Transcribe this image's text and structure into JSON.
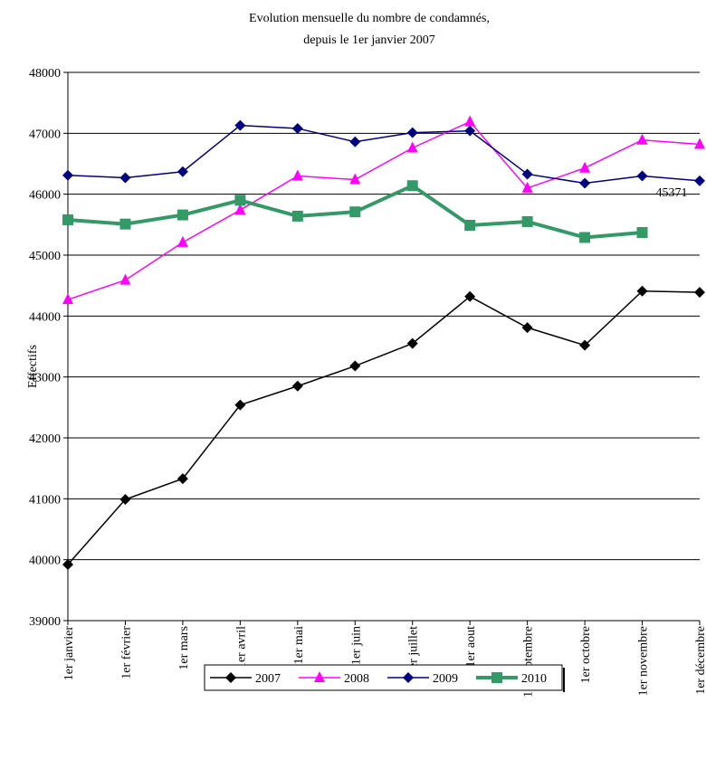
{
  "chart_data": {
    "type": "line",
    "title": [
      "Evolution mensuelle du nombre de condamnés,",
      "depuis le 1er janvier 2007"
    ],
    "y_label": "Effectifs",
    "categories": [
      "1er janvier",
      "1er février",
      "1er mars",
      "1er avril",
      "1er mai",
      "1er juin",
      "1er juillet",
      "1er aout",
      "1er septembre",
      "1er octobre",
      "1er novembre",
      "1er décembre"
    ],
    "series": [
      {
        "name": "2007",
        "color": "#000000",
        "marker": "diamond",
        "values": [
          39920,
          40990,
          41330,
          42540,
          42850,
          43180,
          43550,
          44320,
          43810,
          43520,
          44410,
          44390
        ]
      },
      {
        "name": "2008",
        "color": "#ff00ff",
        "marker": "triangle",
        "values": [
          44270,
          44590,
          45210,
          45740,
          46300,
          46240,
          46760,
          47190,
          46100,
          46430,
          46890,
          46820
        ]
      },
      {
        "name": "2009",
        "color": "#000080",
        "marker": "diamond",
        "values": [
          46310,
          46270,
          46370,
          47130,
          47080,
          46860,
          47010,
          47040,
          46330,
          46180,
          46300,
          46220
        ]
      },
      {
        "name": "2010",
        "color": "#339966",
        "marker": "square",
        "values": [
          45580,
          45510,
          45660,
          45900,
          45640,
          45710,
          46140,
          45490,
          45550,
          45290,
          45371,
          null
        ]
      }
    ],
    "ylim": [
      39000,
      48000
    ],
    "yticks": [
      39000,
      40000,
      41000,
      42000,
      43000,
      44000,
      45000,
      46000,
      47000,
      48000
    ],
    "grid": true,
    "legend": "bottom"
  }
}
